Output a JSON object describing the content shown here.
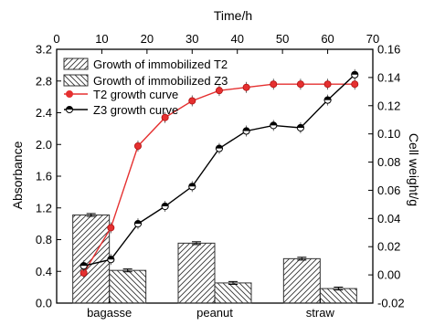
{
  "chart_data": {
    "type": "bar+line",
    "x_top": {
      "label": "Time/h",
      "ticks": [
        0,
        10,
        20,
        30,
        40,
        50,
        60,
        70
      ],
      "range": [
        0,
        70
      ]
    },
    "x_bottom": {
      "categories": [
        "bagasse",
        "peanut",
        "straw"
      ]
    },
    "y_left": {
      "label": "Absorbance",
      "range": [
        0,
        3.2
      ],
      "ticks": [
        "0.0",
        "0.4",
        "0.8",
        "1.2",
        "1.6",
        "2.0",
        "2.4",
        "2.8",
        "3.2"
      ]
    },
    "y_right": {
      "label": "Cell weight/g",
      "range": [
        -0.02,
        0.16
      ],
      "ticks": [
        "-0.02",
        "0.00",
        "0.02",
        "0.04",
        "0.06",
        "0.08",
        "0.10",
        "0.12",
        "0.14",
        "0.16"
      ]
    },
    "bars": [
      {
        "name": "Growth of immobilized T2",
        "axis": "right",
        "pattern": "diag-up",
        "values": [
          0.0425,
          0.0225,
          0.0115
        ],
        "errors": [
          0.001,
          0.001,
          0.001
        ]
      },
      {
        "name": "Growth of immobilized Z3",
        "axis": "right",
        "pattern": "diag-down",
        "values": [
          0.0032,
          -0.0057,
          -0.0097
        ],
        "errors": [
          0.001,
          0.001,
          0.001
        ]
      }
    ],
    "lines": [
      {
        "name": "T2 growth curve",
        "axis": "left",
        "color": "#e53030",
        "x": [
          6,
          12,
          18,
          24,
          30,
          36,
          42,
          48,
          54,
          60,
          66
        ],
        "y": [
          0.38,
          0.95,
          1.98,
          2.34,
          2.55,
          2.68,
          2.72,
          2.76,
          2.76,
          2.76,
          2.76
        ]
      },
      {
        "name": "Z3 growth curve",
        "axis": "left",
        "color": "#000000",
        "x": [
          6,
          12,
          18,
          24,
          30,
          36,
          42,
          48,
          54,
          60,
          66
        ],
        "y": [
          0.47,
          0.55,
          1.0,
          1.22,
          1.47,
          1.95,
          2.17,
          2.24,
          2.21,
          2.56,
          2.88
        ]
      }
    ],
    "grid": false,
    "legend_position": "top-left"
  }
}
